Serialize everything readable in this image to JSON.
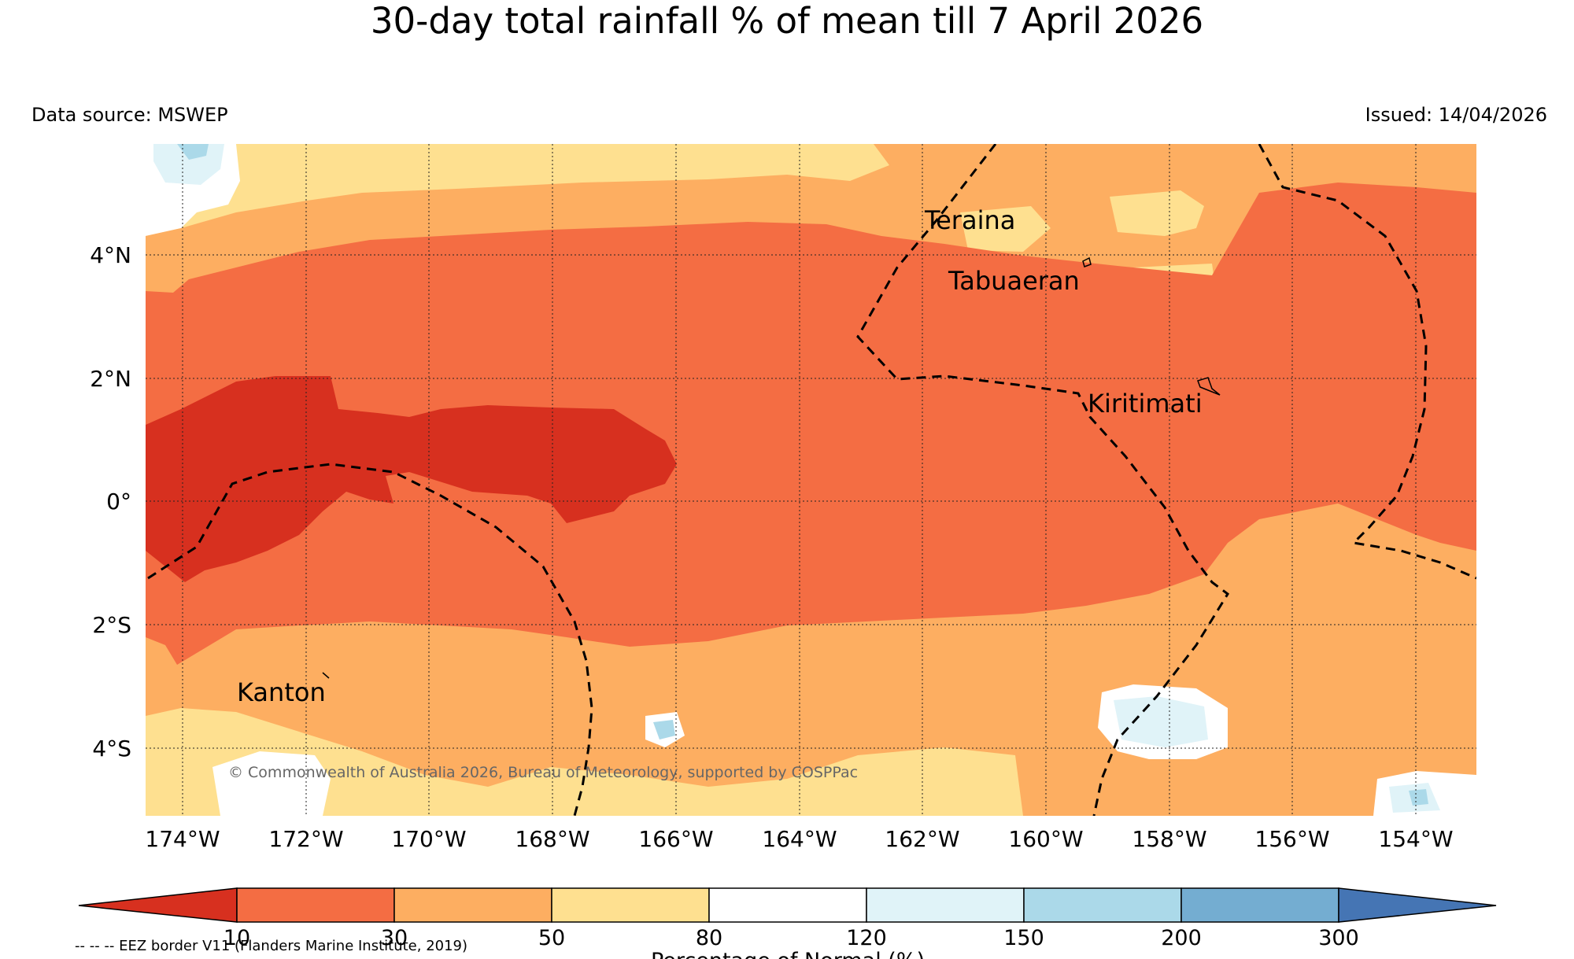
{
  "title": "30-day total rainfall % of mean till 7 April 2026",
  "data_source": "Data source: MSWEP",
  "issued": "Issued: 14/04/2026",
  "lon_labels": [
    "174°W",
    "172°W",
    "170°W",
    "168°W",
    "166°W",
    "164°W",
    "162°W",
    "160°W",
    "158°W",
    "156°W",
    "154°W"
  ],
  "lat_labels": [
    "4°N",
    "2°N",
    "0°",
    "2°S",
    "4°S"
  ],
  "places": [
    {
      "name": "Teraina"
    },
    {
      "name": "Tabuaeran"
    },
    {
      "name": "Kiritimati"
    },
    {
      "name": "Kanton"
    }
  ],
  "copyright": "© Commonwealth of Australia 2026, Bureau of Meteorology, supported by COSPPac",
  "legend": {
    "ticks": [
      "10",
      "30",
      "50",
      "80",
      "120",
      "150",
      "200",
      "300"
    ],
    "label": "Percentage of Normal (%)",
    "colors": [
      "#d7301f",
      "#f46d43",
      "#fdae61",
      "#fee090",
      "#ffffff",
      "#e0f3f8",
      "#abd9e9",
      "#74add1",
      "#4575b4"
    ]
  },
  "eez_note": "-- -- -- EEZ border V11 (Flanders Marine Institute, 2019)"
}
